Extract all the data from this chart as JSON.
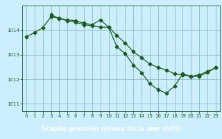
{
  "title": "Graphe pression niveau de la mer (hPa)",
  "background_color": "#cceeff",
  "plot_bg_color": "#cceeff",
  "label_bg_color": "#4a7a5a",
  "label_text_color": "#ffffff",
  "line_color": "#1a5c1a",
  "grid_color": "#88bbbb",
  "xlim_min": -0.5,
  "xlim_max": 23.5,
  "ylim_min": 1010.7,
  "ylim_max": 1015.0,
  "yticks": [
    1011,
    1012,
    1013,
    1014
  ],
  "xticks": [
    0,
    1,
    2,
    3,
    4,
    5,
    6,
    7,
    8,
    9,
    10,
    11,
    12,
    13,
    14,
    15,
    16,
    17,
    18,
    19,
    20,
    21,
    22,
    23
  ],
  "line1_x": [
    0,
    1,
    2,
    3,
    4,
    5,
    6,
    7,
    8,
    9,
    10,
    11,
    12,
    13,
    14,
    15,
    16,
    17,
    18,
    19,
    20,
    21,
    22,
    23
  ],
  "line1_y": [
    1013.73,
    1013.9,
    1014.1,
    1014.55,
    1014.47,
    1014.38,
    1014.32,
    1014.22,
    1014.18,
    1014.12,
    1014.12,
    1013.78,
    1013.48,
    1013.12,
    1012.88,
    1012.62,
    1012.48,
    1012.38,
    1012.22,
    1012.18,
    1012.12,
    1012.18,
    1012.32,
    1012.47
  ],
  "line2_x": [
    3,
    4,
    5,
    6,
    7,
    8,
    9,
    10,
    11,
    12,
    13,
    14,
    15,
    16,
    17,
    18,
    19,
    20,
    21,
    22,
    23
  ],
  "line2_y": [
    1014.62,
    1014.48,
    1014.42,
    1014.38,
    1014.28,
    1014.22,
    1014.42,
    1014.12,
    1013.32,
    1013.05,
    1012.58,
    1012.27,
    1011.82,
    1011.58,
    1011.43,
    1011.72,
    1012.22,
    1012.12,
    1012.12,
    1012.28,
    1012.47
  ],
  "marker": "D",
  "markersize": 2.5,
  "linewidth": 0.9,
  "tick_fontsize": 5.0,
  "label_fontsize": 6.5
}
